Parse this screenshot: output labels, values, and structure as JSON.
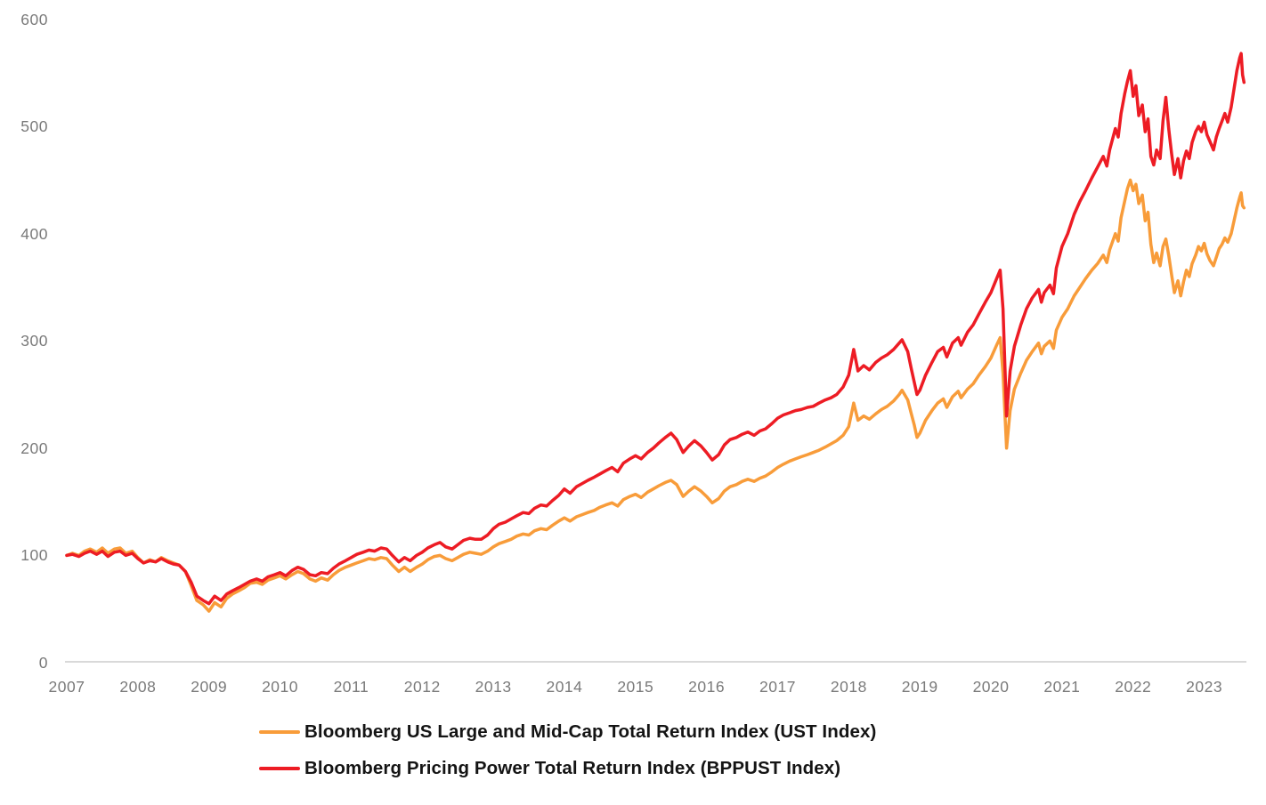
{
  "page": {
    "background": "#FFFFFF"
  },
  "chart_data": {
    "type": "line",
    "title": "",
    "xlabel": "",
    "ylabel": "",
    "grid": false,
    "legend_position": "bottom-left",
    "xlim": [
      2007.0,
      2023.6
    ],
    "ylim": [
      0,
      600
    ],
    "y_axis": {
      "ticks": [
        600,
        500,
        400,
        300,
        200,
        100,
        0
      ]
    },
    "x_axis": {
      "ticks": [
        2007,
        2008,
        2009,
        2010,
        2011,
        2012,
        2013,
        2014,
        2015,
        2016,
        2017,
        2018,
        2019,
        2020,
        2021,
        2022,
        2023
      ]
    },
    "colors": {
      "ust_orange": "#F89C3A",
      "bppust_red": "#ED1C24",
      "tick_text": "#7A7A7A",
      "axis_line": "#D9D9D9",
      "legend_text": "#141414"
    },
    "x": [
      2007.0,
      2007.08,
      2007.17,
      2007.25,
      2007.33,
      2007.42,
      2007.5,
      2007.58,
      2007.67,
      2007.75,
      2007.83,
      2007.92,
      2008.0,
      2008.08,
      2008.17,
      2008.25,
      2008.33,
      2008.42,
      2008.5,
      2008.58,
      2008.67,
      2008.75,
      2008.83,
      2008.92,
      2009.0,
      2009.08,
      2009.17,
      2009.25,
      2009.33,
      2009.42,
      2009.5,
      2009.58,
      2009.67,
      2009.75,
      2009.83,
      2009.92,
      2010.0,
      2010.08,
      2010.17,
      2010.25,
      2010.33,
      2010.42,
      2010.5,
      2010.58,
      2010.67,
      2010.75,
      2010.83,
      2010.92,
      2011.0,
      2011.08,
      2011.17,
      2011.25,
      2011.33,
      2011.42,
      2011.5,
      2011.58,
      2011.67,
      2011.75,
      2011.83,
      2011.92,
      2012.0,
      2012.08,
      2012.17,
      2012.25,
      2012.33,
      2012.42,
      2012.5,
      2012.58,
      2012.67,
      2012.75,
      2012.83,
      2012.92,
      2013.0,
      2013.08,
      2013.17,
      2013.25,
      2013.33,
      2013.42,
      2013.5,
      2013.58,
      2013.67,
      2013.75,
      2013.83,
      2013.92,
      2014.0,
      2014.08,
      2014.17,
      2014.25,
      2014.33,
      2014.42,
      2014.5,
      2014.58,
      2014.67,
      2014.75,
      2014.83,
      2014.92,
      2015.0,
      2015.08,
      2015.17,
      2015.25,
      2015.33,
      2015.42,
      2015.5,
      2015.58,
      2015.67,
      2015.75,
      2015.83,
      2015.92,
      2016.0,
      2016.08,
      2016.17,
      2016.25,
      2016.33,
      2016.42,
      2016.5,
      2016.58,
      2016.67,
      2016.75,
      2016.83,
      2016.92,
      2017.0,
      2017.08,
      2017.17,
      2017.25,
      2017.33,
      2017.42,
      2017.5,
      2017.58,
      2017.67,
      2017.75,
      2017.83,
      2017.92,
      2018.0,
      2018.07,
      2018.13,
      2018.21,
      2018.29,
      2018.38,
      2018.46,
      2018.54,
      2018.63,
      2018.71,
      2018.75,
      2018.83,
      2018.88,
      2018.92,
      2018.96,
      2019.0,
      2019.08,
      2019.17,
      2019.25,
      2019.33,
      2019.38,
      2019.46,
      2019.54,
      2019.58,
      2019.67,
      2019.75,
      2019.83,
      2019.92,
      2020.0,
      2020.08,
      2020.13,
      2020.17,
      2020.22,
      2020.27,
      2020.33,
      2020.42,
      2020.5,
      2020.58,
      2020.67,
      2020.71,
      2020.75,
      2020.83,
      2020.88,
      2020.92,
      2021.0,
      2021.08,
      2021.17,
      2021.25,
      2021.33,
      2021.42,
      2021.5,
      2021.58,
      2021.63,
      2021.67,
      2021.75,
      2021.79,
      2021.83,
      2021.88,
      2021.92,
      2021.96,
      2022.0,
      2022.04,
      2022.08,
      2022.13,
      2022.17,
      2022.21,
      2022.25,
      2022.29,
      2022.33,
      2022.38,
      2022.42,
      2022.46,
      2022.5,
      2022.54,
      2022.58,
      2022.63,
      2022.67,
      2022.71,
      2022.75,
      2022.79,
      2022.83,
      2022.88,
      2022.92,
      2022.96,
      2023.0,
      2023.04,
      2023.08,
      2023.13,
      2023.17,
      2023.21,
      2023.25,
      2023.29,
      2023.33,
      2023.38,
      2023.42,
      2023.46,
      2023.5,
      2023.52,
      2023.54,
      2023.56
    ],
    "series": [
      {
        "name": "Bloomberg US Large and Mid-Cap Total Return Index (UST Index)",
        "color": "#F89C3A",
        "values": [
          100,
          102,
          100,
          104,
          106,
          103,
          107,
          102,
          106,
          107,
          102,
          104,
          98,
          93,
          96,
          94,
          98,
          95,
          93,
          91,
          85,
          72,
          58,
          54,
          48,
          56,
          52,
          60,
          64,
          67,
          70,
          74,
          75,
          73,
          77,
          79,
          81,
          78,
          82,
          85,
          83,
          78,
          76,
          79,
          77,
          82,
          86,
          89,
          91,
          93,
          95,
          97,
          96,
          98,
          97,
          91,
          85,
          89,
          85,
          89,
          92,
          96,
          99,
          100,
          97,
          95,
          98,
          101,
          103,
          102,
          101,
          104,
          108,
          111,
          113,
          115,
          118,
          120,
          119,
          123,
          125,
          124,
          128,
          132,
          135,
          132,
          136,
          138,
          140,
          142,
          145,
          147,
          149,
          146,
          152,
          155,
          157,
          154,
          159,
          162,
          165,
          168,
          170,
          166,
          155,
          160,
          164,
          160,
          155,
          149,
          153,
          160,
          164,
          166,
          169,
          171,
          169,
          172,
          174,
          178,
          182,
          185,
          188,
          190,
          192,
          194,
          196,
          198,
          201,
          204,
          207,
          212,
          220,
          242,
          226,
          230,
          227,
          232,
          236,
          239,
          244,
          250,
          254,
          245,
          232,
          222,
          210,
          214,
          226,
          235,
          242,
          246,
          238,
          248,
          253,
          247,
          255,
          260,
          268,
          276,
          284,
          296,
          303,
          270,
          200,
          235,
          255,
          270,
          282,
          290,
          298,
          288,
          295,
          300,
          293,
          310,
          322,
          330,
          342,
          350,
          358,
          366,
          372,
          380,
          373,
          385,
          400,
          393,
          415,
          430,
          442,
          450,
          440,
          446,
          428,
          436,
          412,
          420,
          390,
          373,
          382,
          370,
          388,
          395,
          380,
          362,
          345,
          356,
          342,
          355,
          366,
          360,
          372,
          380,
          388,
          384,
          391,
          381,
          375,
          370,
          378,
          386,
          390,
          396,
          392,
          400,
          412,
          424,
          434,
          438,
          426,
          424
        ]
      },
      {
        "name": "Bloomberg Pricing Power Total Return Index (BPPUST Index)",
        "color": "#ED1C24",
        "values": [
          100,
          101,
          99,
          102,
          104,
          101,
          104,
          99,
          103,
          104,
          100,
          102,
          97,
          93,
          95,
          94,
          97,
          94,
          92,
          91,
          85,
          75,
          62,
          58,
          55,
          62,
          58,
          64,
          67,
          70,
          73,
          76,
          78,
          76,
          80,
          82,
          84,
          81,
          86,
          89,
          87,
          82,
          81,
          84,
          83,
          88,
          92,
          95,
          98,
          101,
          103,
          105,
          104,
          107,
          106,
          100,
          94,
          98,
          95,
          100,
          103,
          107,
          110,
          112,
          108,
          106,
          110,
          114,
          116,
          115,
          115,
          119,
          125,
          129,
          131,
          134,
          137,
          140,
          139,
          144,
          147,
          146,
          151,
          156,
          162,
          158,
          164,
          167,
          170,
          173,
          176,
          179,
          182,
          178,
          186,
          190,
          193,
          190,
          196,
          200,
          205,
          210,
          214,
          208,
          196,
          202,
          207,
          202,
          196,
          189,
          194,
          203,
          208,
          210,
          213,
          215,
          212,
          216,
          218,
          223,
          228,
          231,
          233,
          235,
          236,
          238,
          239,
          242,
          245,
          247,
          250,
          257,
          268,
          292,
          272,
          277,
          273,
          280,
          284,
          287,
          292,
          298,
          301,
          290,
          274,
          262,
          250,
          254,
          268,
          280,
          290,
          294,
          285,
          298,
          303,
          296,
          308,
          315,
          325,
          336,
          345,
          358,
          366,
          330,
          230,
          272,
          295,
          315,
          330,
          340,
          348,
          336,
          345,
          352,
          344,
          368,
          388,
          400,
          418,
          430,
          440,
          452,
          462,
          472,
          463,
          478,
          498,
          490,
          512,
          530,
          542,
          552,
          528,
          538,
          510,
          520,
          495,
          507,
          472,
          464,
          478,
          470,
          505,
          527,
          498,
          475,
          455,
          470,
          452,
          468,
          477,
          470,
          485,
          495,
          500,
          495,
          504,
          492,
          486,
          478,
          490,
          498,
          505,
          512,
          504,
          518,
          535,
          552,
          564,
          568,
          548,
          541
        ]
      }
    ]
  }
}
